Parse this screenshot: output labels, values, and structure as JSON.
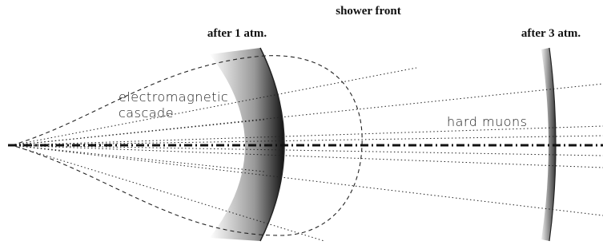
{
  "labels": {
    "shower_front": "shower front",
    "after_1_atm": "after 1 atm.",
    "after_3_atm": "after 3 atm.",
    "cascade": [
      "electromagnetic",
      "cascade"
    ],
    "hard_muons": "hard muons"
  }
}
